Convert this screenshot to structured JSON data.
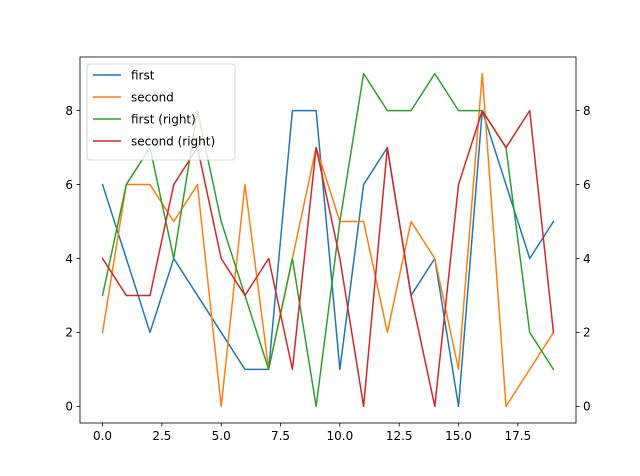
{
  "chart_data": {
    "type": "line",
    "x": [
      0,
      1,
      2,
      3,
      4,
      5,
      6,
      7,
      8,
      9,
      10,
      11,
      12,
      13,
      14,
      15,
      16,
      17,
      18,
      19
    ],
    "series": [
      {
        "name": "first",
        "axis": "left",
        "color": "#1f77b4",
        "values": [
          6,
          4,
          2,
          4,
          3,
          2,
          1,
          1,
          8,
          8,
          1,
          6,
          7,
          3,
          4,
          0,
          8,
          6,
          4,
          5
        ]
      },
      {
        "name": "second",
        "axis": "left",
        "color": "#ff7f0e",
        "values": [
          2,
          6,
          6,
          5,
          6,
          0,
          6,
          1,
          4,
          7,
          5,
          5,
          2,
          5,
          4,
          1,
          9,
          0,
          1,
          2
        ]
      },
      {
        "name": "first (right)",
        "axis": "right",
        "color": "#2ca02c",
        "values": [
          3,
          6,
          7,
          4,
          8,
          5,
          3,
          1,
          4,
          0,
          5,
          9,
          8,
          8,
          9,
          8,
          8,
          7,
          2,
          1
        ]
      },
      {
        "name": "second (right)",
        "axis": "right",
        "color": "#d62728",
        "values": [
          4,
          3,
          3,
          6,
          7,
          4,
          3,
          4,
          1,
          7,
          4,
          0,
          7,
          3,
          0,
          6,
          8,
          7,
          8,
          2
        ]
      }
    ],
    "xlim": [
      -0.95,
      19.95
    ],
    "ylim_left": [
      -0.45,
      9.45
    ],
    "ylim_right": [
      -0.45,
      9.45
    ],
    "xticks": [
      0,
      2.5,
      5,
      7.5,
      10,
      12.5,
      15,
      17.5
    ],
    "xtick_labels": [
      "0.0",
      "2.5",
      "5.0",
      "7.5",
      "10.0",
      "12.5",
      "15.0",
      "17.5"
    ],
    "yticks_left": [
      0,
      2,
      4,
      6,
      8
    ],
    "ytick_labels_left": [
      "0",
      "2",
      "4",
      "6",
      "8"
    ],
    "yticks_right": [
      0,
      2,
      4,
      6,
      8
    ],
    "ytick_labels_right": [
      "0",
      "2",
      "4",
      "6",
      "8"
    ],
    "legend_placement": "upper-left",
    "grid": false
  }
}
